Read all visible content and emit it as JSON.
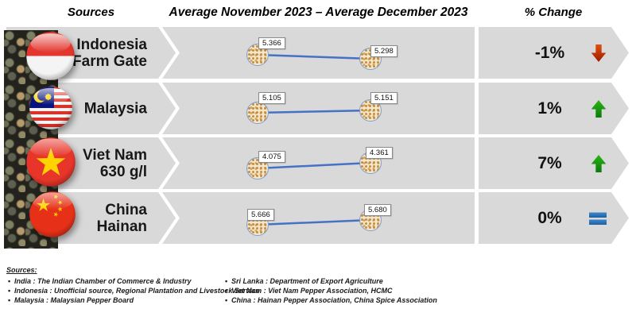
{
  "header": {
    "sources_label": "Sources",
    "period_label": "Average November 2023 – Average December 2023",
    "change_label": "% Change"
  },
  "chart_data": {
    "type": "line",
    "title": "Average November 2023 – Average December 2023",
    "x": [
      "Average November 2023",
      "Average December 2023"
    ],
    "grid": false,
    "legend_position": "none",
    "marker_style": "peppercorn-cluster",
    "line_color": "#4472c4",
    "series": [
      {
        "name": "Indonesia Farm Gate",
        "label_lines": [
          "Indonesia",
          "Farm Gate"
        ],
        "flag": "indonesia-flag",
        "values": [
          5.366,
          5.298
        ],
        "values_display": [
          "5.366",
          "5.298"
        ],
        "change": "-1%",
        "trend": "down"
      },
      {
        "name": "Malaysia",
        "label_lines": [
          "Malaysia",
          ""
        ],
        "flag": "malaysia-flag",
        "values": [
          5.105,
          5.151
        ],
        "values_display": [
          "5.105",
          "5.151"
        ],
        "change": "1%",
        "trend": "up"
      },
      {
        "name": "Viet Nam 630 g/l",
        "label_lines": [
          "Viet Nam",
          "630 g/l"
        ],
        "flag": "viet-nam-flag",
        "values": [
          4.075,
          4.361
        ],
        "values_display": [
          "4.075",
          "4.361"
        ],
        "change": "7%",
        "trend": "up"
      },
      {
        "name": "China Hainan",
        "label_lines": [
          "China",
          "Hainan"
        ],
        "flag": "china-flag",
        "values": [
          5.666,
          5.68
        ],
        "values_display": [
          "5.666",
          "5.680"
        ],
        "change": "0%",
        "trend": "flat"
      }
    ]
  },
  "colors": {
    "band_gray": "#d9d9d9",
    "line_blue": "#4472c4",
    "up_green": "#169416",
    "down_red": "#c23009",
    "flat_blue": "#2e75b6"
  },
  "icons": {
    "down": "arrow-down-icon",
    "up": "arrow-up-icon",
    "flat": "equals-icon"
  },
  "footer": {
    "heading": "Sources:",
    "left_items": [
      "India : The Indian Chamber of Commerce & Industry",
      "Indonesia : Unofficial source, Regional Plantation and Livestock Service",
      "Malaysia : Malaysian Pepper Board"
    ],
    "right_items": [
      "Sri Lanka : Department of Export Agriculture",
      "Viet Nam : Viet Nam Pepper Association, HCMC",
      "China : Hainan Pepper Association, China Spice Association"
    ]
  }
}
